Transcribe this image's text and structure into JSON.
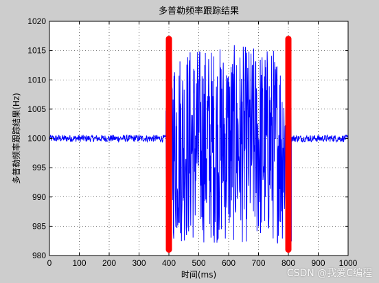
{
  "chart_data": {
    "type": "line",
    "title": "多普勒频率跟踪结果",
    "xlabel": "时间(ms)",
    "ylabel": "多普勒频率跟踪结果(Hz)",
    "xlim": [
      0,
      1000
    ],
    "ylim": [
      980,
      1020
    ],
    "xticks": [
      0,
      100,
      200,
      300,
      400,
      500,
      600,
      700,
      800,
      900,
      1000
    ],
    "yticks": [
      980,
      985,
      990,
      995,
      1000,
      1005,
      1010,
      1015,
      1020
    ],
    "grid": true,
    "series": [
      {
        "color": "#0000ff",
        "segments": [
          {
            "x_range": [
              0,
              390
            ],
            "center": 1000,
            "amplitude": 0.6,
            "note_visible": "steady"
          },
          {
            "x_range": [
              390,
              810
            ],
            "center": 999,
            "amplitude": 17,
            "note_visible": "oscillating"
          },
          {
            "x_range": [
              810,
              1000
            ],
            "center": 1000,
            "amplitude": 0.6,
            "note_visible": "steady"
          }
        ]
      }
    ],
    "markers": [
      {
        "x": 400,
        "y_range": [
          981,
          1017
        ],
        "color": "#ff0000"
      },
      {
        "x": 800,
        "y_range": [
          981,
          1017
        ],
        "color": "#ff0000"
      }
    ]
  },
  "watermark": "CSDN @我爱C编程"
}
